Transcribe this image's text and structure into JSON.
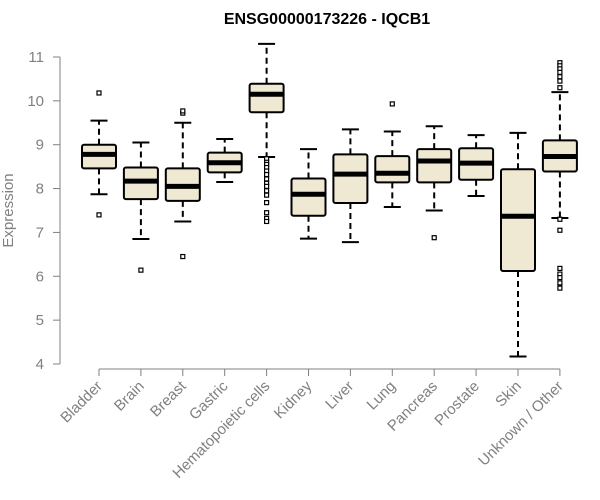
{
  "chart_data": {
    "type": "box",
    "title": "ENSG00000173226 - IQCB1",
    "xlabel": "",
    "ylabel": "Expression",
    "ylim": [
      4,
      11
    ],
    "yticks": [
      4,
      5,
      6,
      7,
      8,
      9,
      10,
      11
    ],
    "grid": false,
    "colors": {
      "box_fill": "#efe8d2",
      "stroke": "#000000",
      "axis": "#808080"
    },
    "categories": [
      "Bladder",
      "Brain",
      "Breast",
      "Gastric",
      "Hematopoietic cells",
      "Kidney",
      "Liver",
      "Lung",
      "Pancreas",
      "Prostate",
      "Skin",
      "Unknown / Other"
    ],
    "boxes": [
      {
        "category": "Bladder",
        "whisker_low": 7.87,
        "q1": 8.46,
        "median": 8.78,
        "q3": 9.0,
        "whisker_high": 9.55,
        "outliers": [
          10.18,
          7.4
        ]
      },
      {
        "category": "Brain",
        "whisker_low": 6.85,
        "q1": 7.76,
        "median": 8.17,
        "q3": 8.48,
        "whisker_high": 9.05,
        "outliers": [
          6.14
        ]
      },
      {
        "category": "Breast",
        "whisker_low": 7.25,
        "q1": 7.72,
        "median": 8.05,
        "q3": 8.46,
        "whisker_high": 9.5,
        "outliers": [
          9.72,
          9.77,
          6.45
        ]
      },
      {
        "category": "Gastric",
        "whisker_low": 8.15,
        "q1": 8.37,
        "median": 8.59,
        "q3": 8.82,
        "whisker_high": 9.13,
        "outliers": []
      },
      {
        "category": "Hematopoietic cells",
        "whisker_low": 8.72,
        "q1": 9.74,
        "median": 10.15,
        "q3": 10.39,
        "whisker_high": 11.3,
        "outliers": [
          8.68,
          8.6,
          8.55,
          8.48,
          8.4,
          8.32,
          8.22,
          8.12,
          8.05,
          7.95,
          7.85,
          7.68,
          7.45,
          7.32,
          7.25
        ]
      },
      {
        "category": "Kidney",
        "whisker_low": 6.86,
        "q1": 7.38,
        "median": 7.87,
        "q3": 8.23,
        "whisker_high": 8.9,
        "outliers": []
      },
      {
        "category": "Liver",
        "whisker_low": 6.78,
        "q1": 7.67,
        "median": 8.33,
        "q3": 8.78,
        "whisker_high": 9.35,
        "outliers": []
      },
      {
        "category": "Lung",
        "whisker_low": 7.58,
        "q1": 8.14,
        "median": 8.35,
        "q3": 8.74,
        "whisker_high": 9.3,
        "outliers": [
          9.93
        ]
      },
      {
        "category": "Pancreas",
        "whisker_low": 7.5,
        "q1": 8.14,
        "median": 8.63,
        "q3": 8.9,
        "whisker_high": 9.42,
        "outliers": [
          6.88
        ]
      },
      {
        "category": "Prostate",
        "whisker_low": 7.83,
        "q1": 8.2,
        "median": 8.58,
        "q3": 8.92,
        "whisker_high": 9.22,
        "outliers": []
      },
      {
        "category": "Skin",
        "whisker_low": 4.17,
        "q1": 6.12,
        "median": 7.37,
        "q3": 8.44,
        "whisker_high": 9.27,
        "outliers": []
      },
      {
        "category": "Unknown / Other",
        "whisker_low": 7.33,
        "q1": 8.39,
        "median": 8.73,
        "q3": 9.1,
        "whisker_high": 10.2,
        "outliers": [
          10.87,
          10.8,
          10.73,
          10.65,
          10.55,
          10.45,
          10.3,
          7.3,
          7.05,
          6.18,
          6.05,
          5.97,
          5.85,
          5.73
        ]
      }
    ]
  }
}
